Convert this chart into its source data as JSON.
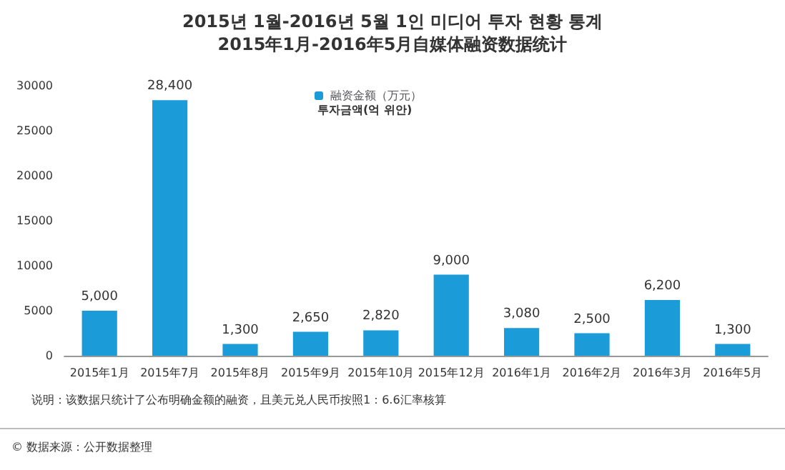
{
  "chart_data": {
    "type": "bar",
    "title": "2015년 1월-2016년 5월 1인 미디어 투자 현황 통계",
    "subtitle": "2015年1月-2016年5月自媒体融资数据统计",
    "categories": [
      "2015年1月",
      "2015年7月",
      "2015年8月",
      "2015年9月",
      "2015年10月",
      "2015年12月",
      "2016年1月",
      "2016年2月",
      "2016年3月",
      "2016年5月"
    ],
    "series": [
      {
        "name": "融资金额（万元）",
        "color": "#1b9bd7",
        "values": [
          5000,
          28400,
          1300,
          2650,
          2820,
          9000,
          3080,
          2500,
          6200,
          1300
        ]
      }
    ],
    "value_labels": [
      "5,000",
      "28,400",
      "1,300",
      "2,650",
      "2,820",
      "9,000",
      "3,080",
      "2,500",
      "6,200",
      "1,300"
    ],
    "ylim": [
      0,
      30000
    ],
    "yticks": [
      0,
      5000,
      10000,
      15000,
      20000,
      25000,
      30000
    ],
    "grid": false,
    "legend": "top",
    "annotations": [
      "투자금액(억 위안)",
      "说明：该数据只统计了公布明确金额的融资，且美元兑人民币按照1：6.6汇率核算",
      "© 数据来源：公开数据整理"
    ]
  }
}
